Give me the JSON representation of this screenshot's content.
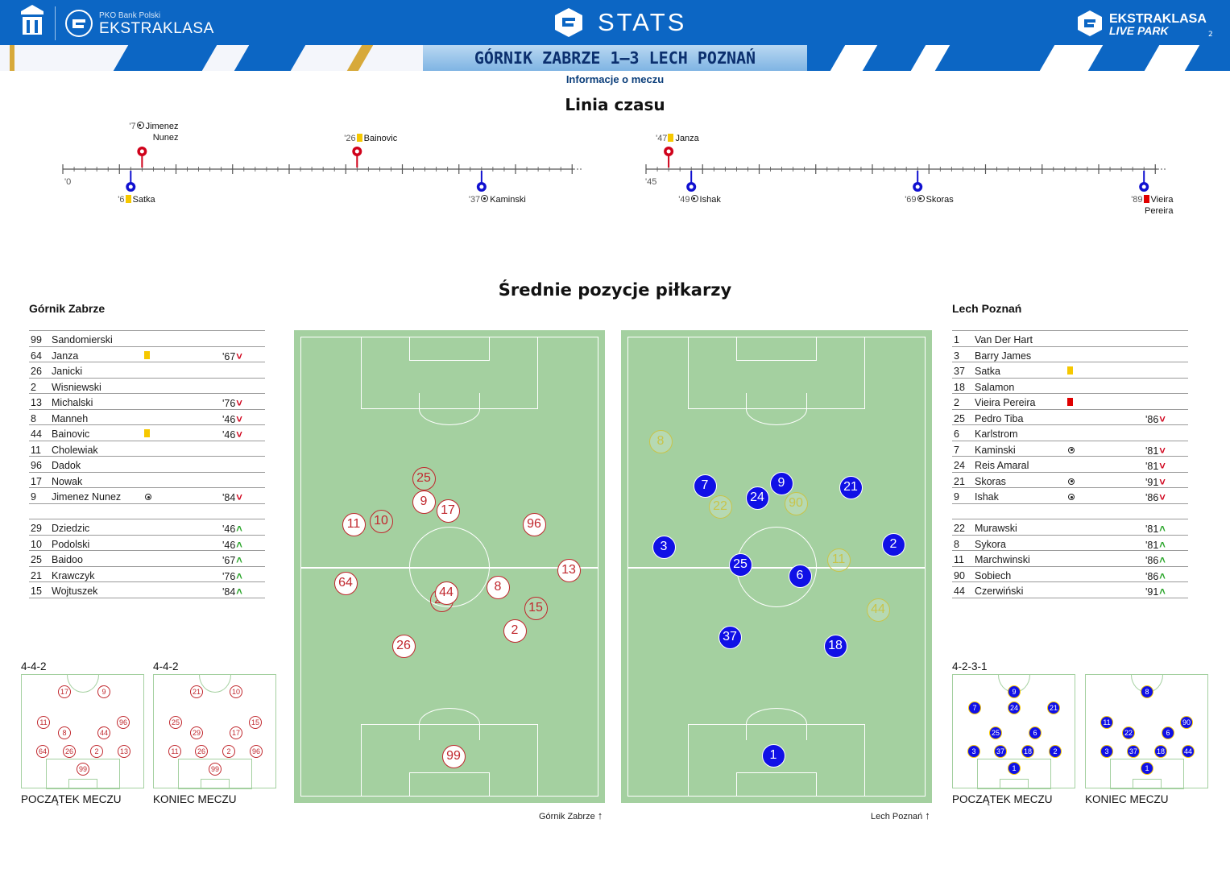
{
  "header": {
    "brand_small": "PKO Bank Polski",
    "brand": "EKSTRAKLASA",
    "stats": "STATS",
    "right_brand_1": "EKSTRAKLASA",
    "right_brand_2": "LIVE PARK",
    "page_number": "2",
    "score": "GÓRNIK ZABRZE 1–3 LECH POZNAŃ",
    "subtitle": "Informacje o meczu"
  },
  "timeline": {
    "title": "Linia czasu",
    "first_half_start": "'0",
    "second_half_start": "'45",
    "home_events": [
      {
        "minute": "'7",
        "type": "goal",
        "player": "Jimenez",
        "player2": "Nunez"
      },
      {
        "minute": "'26",
        "type": "yellow",
        "player": "Bainovic"
      },
      {
        "minute": "'47",
        "type": "yellow",
        "player": "Janza"
      }
    ],
    "away_events": [
      {
        "minute": "'6",
        "type": "yellow",
        "player": "Satka"
      },
      {
        "minute": "'37",
        "type": "goal",
        "player": "Kaminski"
      },
      {
        "minute": "'49",
        "type": "goal",
        "player": "Ishak"
      },
      {
        "minute": "'69",
        "type": "goal",
        "player": "Skoras"
      },
      {
        "minute": "'89",
        "type": "red",
        "player": "Vieira",
        "player2": "Pereira"
      }
    ]
  },
  "positions_title": "Średnie pozycje piłkarzy",
  "home": {
    "name": "Górnik Zabrze",
    "starters": [
      {
        "num": "99",
        "name": "Sandomierski",
        "event": "",
        "sub": ""
      },
      {
        "num": "64",
        "name": "Janza",
        "event": "yellow",
        "sub": "'67"
      },
      {
        "num": "26",
        "name": "Janicki",
        "event": "",
        "sub": ""
      },
      {
        "num": "2",
        "name": "Wisniewski",
        "event": "",
        "sub": ""
      },
      {
        "num": "13",
        "name": "Michalski",
        "event": "",
        "sub": "'76"
      },
      {
        "num": "8",
        "name": "Manneh",
        "event": "",
        "sub": "'46"
      },
      {
        "num": "44",
        "name": "Bainovic",
        "event": "yellow",
        "sub": "'46"
      },
      {
        "num": "11",
        "name": "Cholewiak",
        "event": "",
        "sub": ""
      },
      {
        "num": "96",
        "name": "Dadok",
        "event": "",
        "sub": ""
      },
      {
        "num": "17",
        "name": "Nowak",
        "event": "",
        "sub": ""
      },
      {
        "num": "9",
        "name": "Jimenez Nunez",
        "event": "goal",
        "sub": "'84"
      }
    ],
    "subs": [
      {
        "num": "29",
        "name": "Dziedzic",
        "sub": "'46"
      },
      {
        "num": "10",
        "name": "Podolski",
        "sub": "'46"
      },
      {
        "num": "25",
        "name": "Baidoo",
        "sub": "'67"
      },
      {
        "num": "21",
        "name": "Krawczyk",
        "sub": "'76"
      },
      {
        "num": "15",
        "name": "Wojtuszek",
        "sub": "'84"
      }
    ],
    "formation": "4-4-2",
    "formation_end": "4-4-2",
    "start_label": "POCZĄTEK MECZU",
    "end_label": "KONIEC MECZU",
    "pitch_caption": "Górnik Zabrze",
    "avg_positions": [
      {
        "n": "25",
        "sub": true
      },
      {
        "n": "9",
        "sub": false
      },
      {
        "n": "17",
        "sub": false
      },
      {
        "n": "11",
        "sub": false
      },
      {
        "n": "10",
        "sub": true
      },
      {
        "n": "96",
        "sub": false
      },
      {
        "n": "13",
        "sub": false
      },
      {
        "n": "64",
        "sub": false
      },
      {
        "n": "29",
        "sub": true
      },
      {
        "n": "44",
        "sub": false
      },
      {
        "n": "8",
        "sub": false
      },
      {
        "n": "15",
        "sub": true
      },
      {
        "n": "2",
        "sub": false
      },
      {
        "n": "26",
        "sub": false
      },
      {
        "n": "99",
        "sub": false
      }
    ],
    "mini_start": [
      "17",
      "9",
      "11",
      "96",
      "8",
      "44",
      "64",
      "26",
      "2",
      "13",
      "99"
    ],
    "mini_end": [
      "21",
      "10",
      "25",
      "15",
      "29",
      "17",
      "11",
      "26",
      "2",
      "96",
      "99"
    ]
  },
  "away": {
    "name": "Lech Poznań",
    "starters": [
      {
        "num": "1",
        "name": "Van Der Hart",
        "event": "",
        "sub": ""
      },
      {
        "num": "3",
        "name": "Barry James",
        "event": "",
        "sub": ""
      },
      {
        "num": "37",
        "name": "Satka",
        "event": "yellow",
        "sub": ""
      },
      {
        "num": "18",
        "name": "Salamon",
        "event": "",
        "sub": ""
      },
      {
        "num": "2",
        "name": "Vieira Pereira",
        "event": "red",
        "sub": ""
      },
      {
        "num": "25",
        "name": "Pedro Tiba",
        "event": "",
        "sub": "'86"
      },
      {
        "num": "6",
        "name": "Karlstrom",
        "event": "",
        "sub": ""
      },
      {
        "num": "7",
        "name": "Kaminski",
        "event": "goal",
        "sub": "'81"
      },
      {
        "num": "24",
        "name": "Reis Amaral",
        "event": "",
        "sub": "'81"
      },
      {
        "num": "21",
        "name": "Skoras",
        "event": "goal",
        "sub": "'91"
      },
      {
        "num": "9",
        "name": "Ishak",
        "event": "goal",
        "sub": "'86"
      }
    ],
    "subs": [
      {
        "num": "22",
        "name": "Murawski",
        "sub": "'81"
      },
      {
        "num": "8",
        "name": "Sykora",
        "sub": "'81"
      },
      {
        "num": "11",
        "name": "Marchwinski",
        "sub": "'86"
      },
      {
        "num": "90",
        "name": "Sobiech",
        "sub": "'86"
      },
      {
        "num": "44",
        "name": "Czerwiński",
        "sub": "'91"
      }
    ],
    "formation": "4-2-3-1",
    "start_label": "POCZĄTEK MECZU",
    "end_label": "KONIEC MECZU",
    "pitch_caption": "Lech Poznań",
    "avg_positions": [
      {
        "n": "8",
        "sub": true
      },
      {
        "n": "7",
        "sub": false
      },
      {
        "n": "22",
        "sub": true
      },
      {
        "n": "24",
        "sub": false
      },
      {
        "n": "9",
        "sub": false
      },
      {
        "n": "90",
        "sub": true
      },
      {
        "n": "21",
        "sub": false
      },
      {
        "n": "3",
        "sub": false
      },
      {
        "n": "25",
        "sub": false
      },
      {
        "n": "6",
        "sub": false
      },
      {
        "n": "11",
        "sub": true
      },
      {
        "n": "2",
        "sub": false
      },
      {
        "n": "44",
        "sub": true
      },
      {
        "n": "37",
        "sub": false
      },
      {
        "n": "18",
        "sub": false
      },
      {
        "n": "1",
        "sub": false
      }
    ],
    "mini_start": [
      "9",
      "7",
      "24",
      "21",
      "25",
      "6",
      "3",
      "37",
      "18",
      "2",
      "1"
    ],
    "mini_end": [
      "8",
      "11",
      "22",
      "90",
      "6",
      "3",
      "37",
      "18",
      "44",
      "1"
    ]
  },
  "colors": {
    "home": "#c0272d",
    "away": "#1010e6",
    "pitch": "#a4d0a0",
    "banner": "#0c66c4"
  }
}
